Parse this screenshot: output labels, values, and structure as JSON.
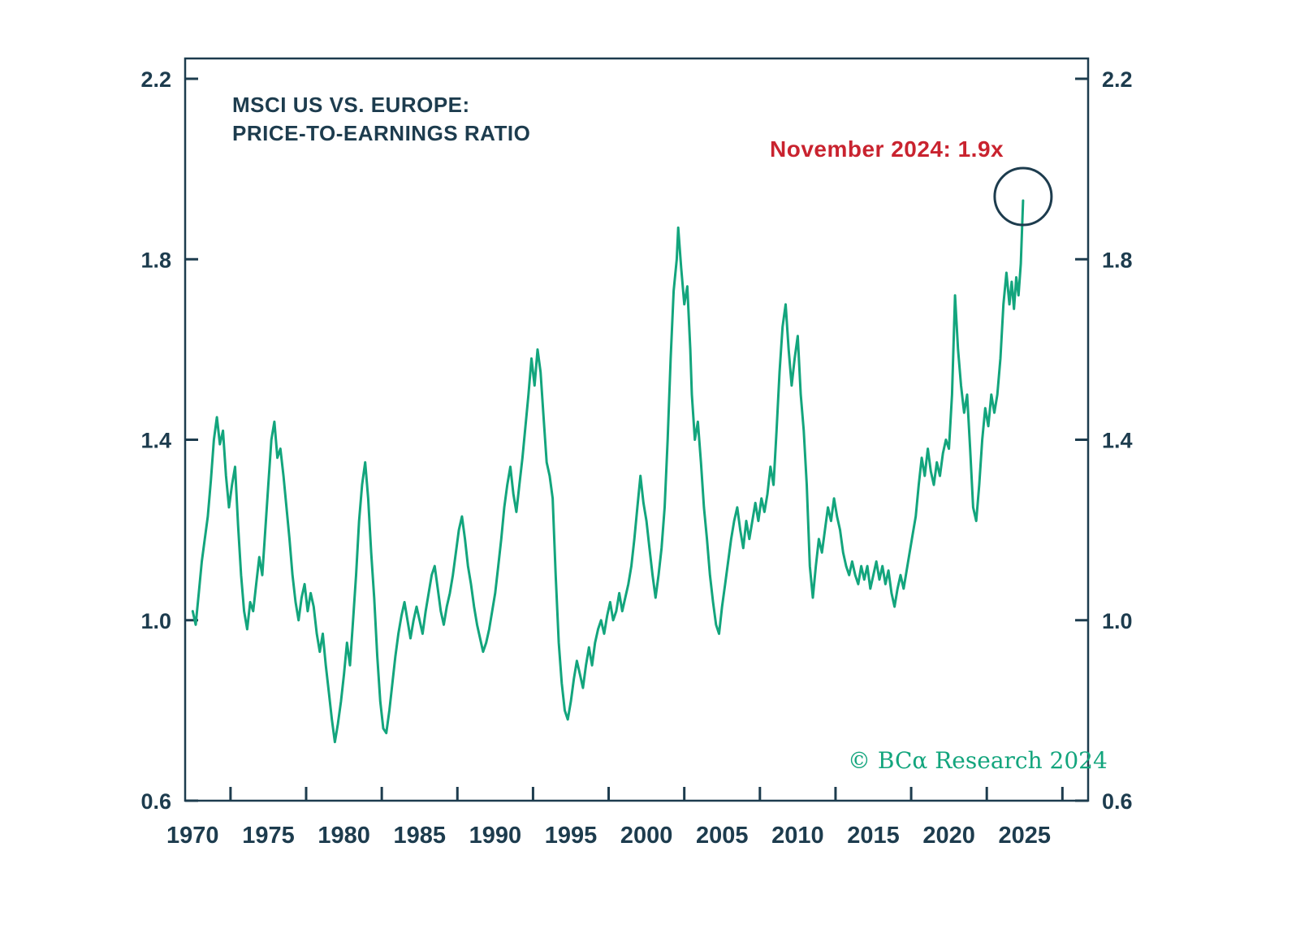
{
  "title": {
    "line1": "MSCI US VS. EUROPE:",
    "line2": "PRICE-TO-EARNINGS RATIO"
  },
  "annotation": {
    "text": "November 2024: 1.9x"
  },
  "watermark": {
    "text": "© BCα Research 2024"
  },
  "colors": {
    "line": "#13a57d",
    "axis": "#1d3c4e",
    "text": "#1d3c4e",
    "annotation": "#c9232f",
    "watermark": "#13a57d",
    "circle": "#1d3c4e",
    "background": "#ffffff"
  },
  "chart_data": {
    "type": "line",
    "title": "MSCI US VS. EUROPE: PRICE-TO-EARNINGS RATIO",
    "series_name": "MSCI US vs. Europe price-to-earnings ratio",
    "xlim": [
      1969.5,
      2029.2
    ],
    "ylim": [
      0.6,
      2.245
    ],
    "yticks": [
      0.6,
      1.0,
      1.4,
      1.8,
      2.2
    ],
    "xticks": [
      1970,
      1975,
      1980,
      1985,
      1990,
      1995,
      2000,
      2005,
      2010,
      2015,
      2020,
      2025
    ],
    "grid": false,
    "highlight": {
      "label": "November 2024: 1.9x",
      "x": 2024.9,
      "value": 1.93
    },
    "points": [
      [
        1970.0,
        1.02
      ],
      [
        1970.2,
        0.99
      ],
      [
        1970.4,
        1.06
      ],
      [
        1970.6,
        1.13
      ],
      [
        1970.8,
        1.18
      ],
      [
        1971.0,
        1.23
      ],
      [
        1971.2,
        1.31
      ],
      [
        1971.4,
        1.4
      ],
      [
        1971.6,
        1.45
      ],
      [
        1971.8,
        1.39
      ],
      [
        1972.0,
        1.42
      ],
      [
        1972.2,
        1.32
      ],
      [
        1972.4,
        1.25
      ],
      [
        1972.6,
        1.3
      ],
      [
        1972.8,
        1.34
      ],
      [
        1973.0,
        1.21
      ],
      [
        1973.2,
        1.1
      ],
      [
        1973.4,
        1.02
      ],
      [
        1973.6,
        0.98
      ],
      [
        1973.8,
        1.04
      ],
      [
        1974.0,
        1.02
      ],
      [
        1974.2,
        1.08
      ],
      [
        1974.4,
        1.14
      ],
      [
        1974.6,
        1.1
      ],
      [
        1974.8,
        1.2
      ],
      [
        1975.0,
        1.3
      ],
      [
        1975.2,
        1.4
      ],
      [
        1975.4,
        1.44
      ],
      [
        1975.6,
        1.36
      ],
      [
        1975.8,
        1.38
      ],
      [
        1976.0,
        1.32
      ],
      [
        1976.2,
        1.25
      ],
      [
        1976.4,
        1.18
      ],
      [
        1976.6,
        1.1
      ],
      [
        1976.8,
        1.04
      ],
      [
        1977.0,
        1.0
      ],
      [
        1977.2,
        1.05
      ],
      [
        1977.4,
        1.08
      ],
      [
        1977.6,
        1.02
      ],
      [
        1977.8,
        1.06
      ],
      [
        1978.0,
        1.03
      ],
      [
        1978.2,
        0.97
      ],
      [
        1978.4,
        0.93
      ],
      [
        1978.6,
        0.97
      ],
      [
        1978.8,
        0.9
      ],
      [
        1979.0,
        0.84
      ],
      [
        1979.2,
        0.78
      ],
      [
        1979.4,
        0.73
      ],
      [
        1979.6,
        0.77
      ],
      [
        1979.8,
        0.82
      ],
      [
        1980.0,
        0.88
      ],
      [
        1980.2,
        0.95
      ],
      [
        1980.4,
        0.9
      ],
      [
        1980.6,
        1.0
      ],
      [
        1980.8,
        1.1
      ],
      [
        1981.0,
        1.22
      ],
      [
        1981.2,
        1.3
      ],
      [
        1981.4,
        1.35
      ],
      [
        1981.6,
        1.27
      ],
      [
        1981.8,
        1.15
      ],
      [
        1982.0,
        1.05
      ],
      [
        1982.2,
        0.92
      ],
      [
        1982.4,
        0.82
      ],
      [
        1982.6,
        0.76
      ],
      [
        1982.8,
        0.75
      ],
      [
        1983.0,
        0.8
      ],
      [
        1983.2,
        0.86
      ],
      [
        1983.4,
        0.92
      ],
      [
        1983.6,
        0.97
      ],
      [
        1983.8,
        1.01
      ],
      [
        1984.0,
        1.04
      ],
      [
        1984.2,
        1.0
      ],
      [
        1984.4,
        0.96
      ],
      [
        1984.6,
        1.0
      ],
      [
        1984.8,
        1.03
      ],
      [
        1985.0,
        1.0
      ],
      [
        1985.2,
        0.97
      ],
      [
        1985.4,
        1.02
      ],
      [
        1985.6,
        1.06
      ],
      [
        1985.8,
        1.1
      ],
      [
        1986.0,
        1.12
      ],
      [
        1986.2,
        1.07
      ],
      [
        1986.4,
        1.02
      ],
      [
        1986.6,
        0.99
      ],
      [
        1986.8,
        1.03
      ],
      [
        1987.0,
        1.06
      ],
      [
        1987.2,
        1.1
      ],
      [
        1987.4,
        1.15
      ],
      [
        1987.6,
        1.2
      ],
      [
        1987.8,
        1.23
      ],
      [
        1988.0,
        1.18
      ],
      [
        1988.2,
        1.12
      ],
      [
        1988.4,
        1.08
      ],
      [
        1988.6,
        1.03
      ],
      [
        1988.8,
        0.99
      ],
      [
        1989.0,
        0.96
      ],
      [
        1989.2,
        0.93
      ],
      [
        1989.4,
        0.95
      ],
      [
        1989.6,
        0.98
      ],
      [
        1989.8,
        1.02
      ],
      [
        1990.0,
        1.06
      ],
      [
        1990.2,
        1.12
      ],
      [
        1990.4,
        1.18
      ],
      [
        1990.6,
        1.25
      ],
      [
        1990.8,
        1.3
      ],
      [
        1991.0,
        1.34
      ],
      [
        1991.2,
        1.28
      ],
      [
        1991.4,
        1.24
      ],
      [
        1991.6,
        1.3
      ],
      [
        1991.8,
        1.36
      ],
      [
        1992.0,
        1.43
      ],
      [
        1992.2,
        1.5
      ],
      [
        1992.4,
        1.58
      ],
      [
        1992.6,
        1.52
      ],
      [
        1992.8,
        1.6
      ],
      [
        1993.0,
        1.55
      ],
      [
        1993.2,
        1.45
      ],
      [
        1993.4,
        1.35
      ],
      [
        1993.6,
        1.32
      ],
      [
        1993.8,
        1.27
      ],
      [
        1994.0,
        1.1
      ],
      [
        1994.2,
        0.95
      ],
      [
        1994.4,
        0.86
      ],
      [
        1994.6,
        0.8
      ],
      [
        1994.8,
        0.78
      ],
      [
        1995.0,
        0.82
      ],
      [
        1995.2,
        0.87
      ],
      [
        1995.4,
        0.91
      ],
      [
        1995.6,
        0.88
      ],
      [
        1995.8,
        0.85
      ],
      [
        1996.0,
        0.9
      ],
      [
        1996.2,
        0.94
      ],
      [
        1996.4,
        0.9
      ],
      [
        1996.6,
        0.95
      ],
      [
        1996.8,
        0.98
      ],
      [
        1997.0,
        1.0
      ],
      [
        1997.2,
        0.97
      ],
      [
        1997.4,
        1.01
      ],
      [
        1997.6,
        1.04
      ],
      [
        1997.8,
        1.0
      ],
      [
        1998.0,
        1.02
      ],
      [
        1998.2,
        1.06
      ],
      [
        1998.4,
        1.02
      ],
      [
        1998.6,
        1.05
      ],
      [
        1998.8,
        1.08
      ],
      [
        1999.0,
        1.12
      ],
      [
        1999.2,
        1.18
      ],
      [
        1999.4,
        1.25
      ],
      [
        1999.6,
        1.32
      ],
      [
        1999.8,
        1.26
      ],
      [
        2000.0,
        1.22
      ],
      [
        2000.2,
        1.16
      ],
      [
        2000.4,
        1.1
      ],
      [
        2000.6,
        1.05
      ],
      [
        2000.8,
        1.1
      ],
      [
        2001.0,
        1.16
      ],
      [
        2001.2,
        1.25
      ],
      [
        2001.4,
        1.4
      ],
      [
        2001.6,
        1.58
      ],
      [
        2001.8,
        1.73
      ],
      [
        2002.0,
        1.8
      ],
      [
        2002.1,
        1.87
      ],
      [
        2002.3,
        1.78
      ],
      [
        2002.5,
        1.7
      ],
      [
        2002.7,
        1.74
      ],
      [
        2002.9,
        1.6
      ],
      [
        2003.0,
        1.5
      ],
      [
        2003.2,
        1.4
      ],
      [
        2003.4,
        1.44
      ],
      [
        2003.6,
        1.35
      ],
      [
        2003.8,
        1.25
      ],
      [
        2004.0,
        1.18
      ],
      [
        2004.2,
        1.1
      ],
      [
        2004.4,
        1.04
      ],
      [
        2004.6,
        0.99
      ],
      [
        2004.8,
        0.97
      ],
      [
        2005.0,
        1.03
      ],
      [
        2005.2,
        1.08
      ],
      [
        2005.4,
        1.13
      ],
      [
        2005.6,
        1.18
      ],
      [
        2005.8,
        1.22
      ],
      [
        2006.0,
        1.25
      ],
      [
        2006.2,
        1.2
      ],
      [
        2006.4,
        1.16
      ],
      [
        2006.6,
        1.22
      ],
      [
        2006.8,
        1.18
      ],
      [
        2007.0,
        1.22
      ],
      [
        2007.2,
        1.26
      ],
      [
        2007.4,
        1.22
      ],
      [
        2007.6,
        1.27
      ],
      [
        2007.8,
        1.24
      ],
      [
        2008.0,
        1.28
      ],
      [
        2008.2,
        1.34
      ],
      [
        2008.4,
        1.3
      ],
      [
        2008.6,
        1.42
      ],
      [
        2008.8,
        1.55
      ],
      [
        2009.0,
        1.65
      ],
      [
        2009.2,
        1.7
      ],
      [
        2009.4,
        1.6
      ],
      [
        2009.6,
        1.52
      ],
      [
        2009.8,
        1.58
      ],
      [
        2010.0,
        1.63
      ],
      [
        2010.2,
        1.5
      ],
      [
        2010.4,
        1.42
      ],
      [
        2010.6,
        1.3
      ],
      [
        2010.8,
        1.12
      ],
      [
        2011.0,
        1.05
      ],
      [
        2011.2,
        1.12
      ],
      [
        2011.4,
        1.18
      ],
      [
        2011.6,
        1.15
      ],
      [
        2011.8,
        1.2
      ],
      [
        2012.0,
        1.25
      ],
      [
        2012.2,
        1.22
      ],
      [
        2012.4,
        1.27
      ],
      [
        2012.6,
        1.23
      ],
      [
        2012.8,
        1.2
      ],
      [
        2013.0,
        1.15
      ],
      [
        2013.2,
        1.12
      ],
      [
        2013.4,
        1.1
      ],
      [
        2013.6,
        1.13
      ],
      [
        2013.8,
        1.1
      ],
      [
        2014.0,
        1.08
      ],
      [
        2014.2,
        1.12
      ],
      [
        2014.4,
        1.09
      ],
      [
        2014.6,
        1.12
      ],
      [
        2014.8,
        1.07
      ],
      [
        2015.0,
        1.1
      ],
      [
        2015.2,
        1.13
      ],
      [
        2015.4,
        1.09
      ],
      [
        2015.6,
        1.12
      ],
      [
        2015.8,
        1.08
      ],
      [
        2016.0,
        1.11
      ],
      [
        2016.2,
        1.06
      ],
      [
        2016.4,
        1.03
      ],
      [
        2016.6,
        1.07
      ],
      [
        2016.8,
        1.1
      ],
      [
        2017.0,
        1.07
      ],
      [
        2017.2,
        1.11
      ],
      [
        2017.4,
        1.15
      ],
      [
        2017.6,
        1.19
      ],
      [
        2017.8,
        1.23
      ],
      [
        2018.0,
        1.3
      ],
      [
        2018.2,
        1.36
      ],
      [
        2018.4,
        1.32
      ],
      [
        2018.6,
        1.38
      ],
      [
        2018.8,
        1.33
      ],
      [
        2019.0,
        1.3
      ],
      [
        2019.2,
        1.35
      ],
      [
        2019.4,
        1.32
      ],
      [
        2019.6,
        1.37
      ],
      [
        2019.8,
        1.4
      ],
      [
        2020.0,
        1.38
      ],
      [
        2020.2,
        1.5
      ],
      [
        2020.4,
        1.72
      ],
      [
        2020.6,
        1.6
      ],
      [
        2020.8,
        1.52
      ],
      [
        2021.0,
        1.46
      ],
      [
        2021.2,
        1.5
      ],
      [
        2021.4,
        1.38
      ],
      [
        2021.6,
        1.25
      ],
      [
        2021.8,
        1.22
      ],
      [
        2022.0,
        1.3
      ],
      [
        2022.2,
        1.4
      ],
      [
        2022.4,
        1.47
      ],
      [
        2022.6,
        1.43
      ],
      [
        2022.8,
        1.5
      ],
      [
        2023.0,
        1.46
      ],
      [
        2023.2,
        1.5
      ],
      [
        2023.4,
        1.58
      ],
      [
        2023.6,
        1.7
      ],
      [
        2023.8,
        1.77
      ],
      [
        2024.0,
        1.7
      ],
      [
        2024.15,
        1.75
      ],
      [
        2024.3,
        1.69
      ],
      [
        2024.45,
        1.76
      ],
      [
        2024.6,
        1.72
      ],
      [
        2024.75,
        1.79
      ],
      [
        2024.9,
        1.93
      ]
    ]
  }
}
